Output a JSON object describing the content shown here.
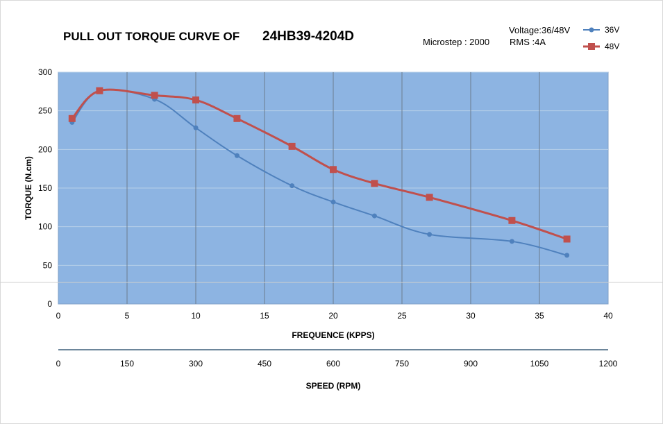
{
  "header": {
    "title": "PULL OUT TORQUE CURVE OF",
    "model": "24HB39-4204D",
    "microstep": "Microstep : 2000",
    "voltage": "Voltage:36/48V",
    "rms": "RMS :4A"
  },
  "colors": {
    "plot_bg": "#8db4e2",
    "series_36v": "#4f81bd",
    "series_48v": "#c0504d",
    "gridline": "#6b7c8f",
    "hgrid": "#b8cfe8",
    "rpm_axis": "#3d5f7a"
  },
  "chart_data": [
    {
      "type": "line",
      "title": "PULL OUT TORQUE CURVE OF 24HB39-4204D",
      "xlabel": "FREQUENCE (KPPS)",
      "ylabel": "TORQUE (N.cm)",
      "xlim": [
        0,
        40
      ],
      "ylim": [
        0,
        300
      ],
      "xticks": [
        "0",
        "5",
        "10",
        "15",
        "20",
        "25",
        "30",
        "35",
        "40"
      ],
      "yticks": [
        "0",
        "50",
        "100",
        "150",
        "200",
        "250",
        "300"
      ],
      "grid": "vertical",
      "legend_position": "top-right",
      "series": [
        {
          "name": "36V",
          "marker": "circle",
          "x": [
            1,
            3,
            7,
            10,
            13,
            17,
            20,
            23,
            27,
            33,
            37
          ],
          "y": [
            235,
            276,
            265,
            228,
            192,
            153,
            132,
            114,
            90,
            81,
            63
          ]
        },
        {
          "name": "48V",
          "marker": "square",
          "x": [
            1,
            3,
            7,
            10,
            13,
            17,
            20,
            23,
            27,
            33,
            37
          ],
          "y": [
            240,
            276,
            270,
            264,
            240,
            204,
            174,
            156,
            138,
            108,
            84
          ]
        }
      ]
    },
    {
      "type": "axis",
      "xlabel": "SPEED (RPM)",
      "xlim": [
        0,
        1200
      ],
      "xticks": [
        "0",
        "150",
        "300",
        "450",
        "600",
        "750",
        "900",
        "1050",
        "1200"
      ]
    }
  ]
}
